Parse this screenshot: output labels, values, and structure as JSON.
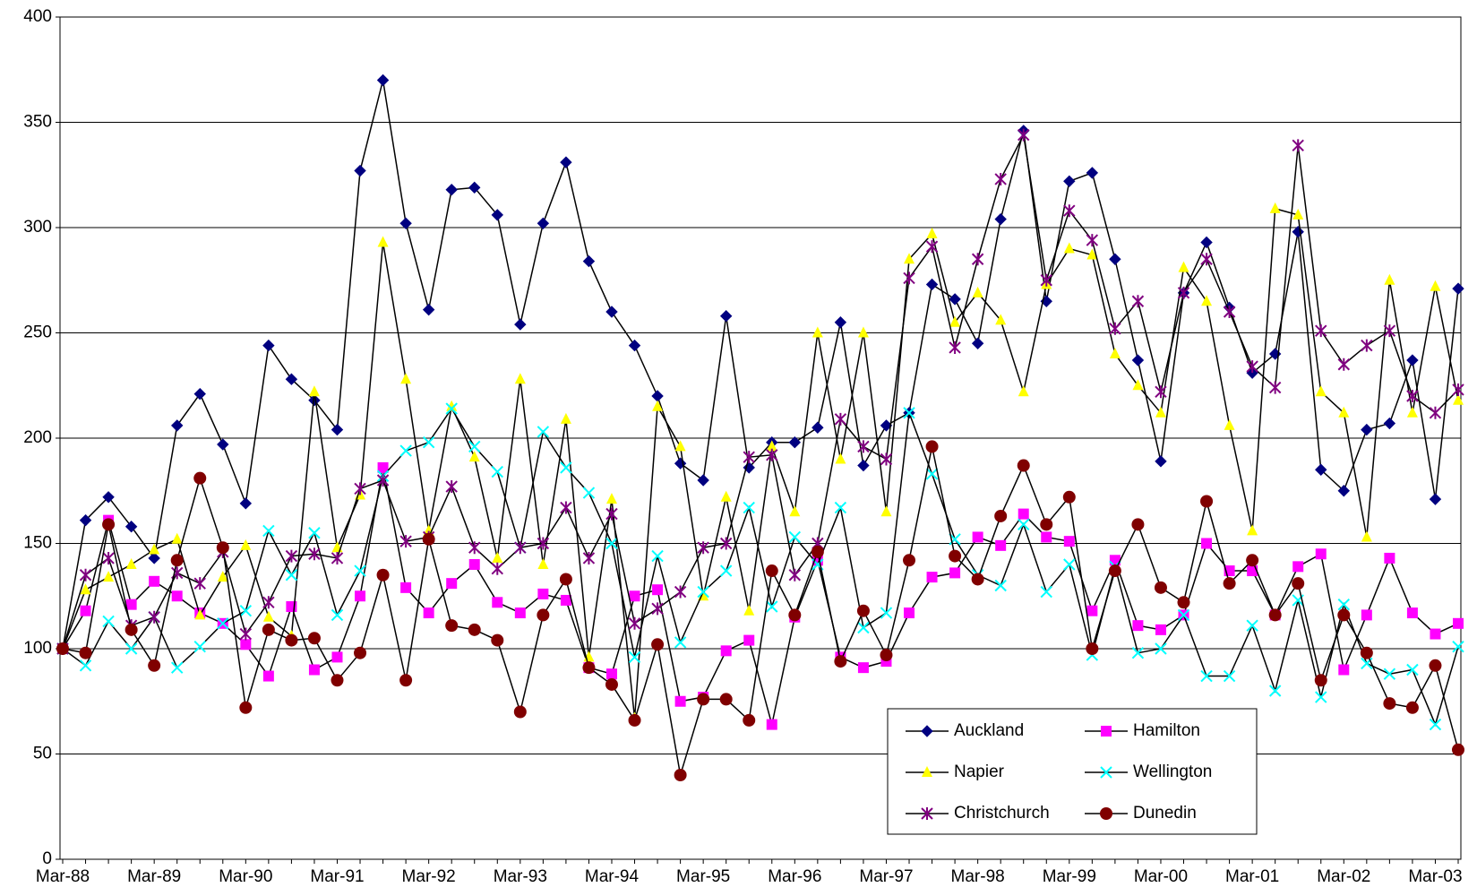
{
  "chart_data": {
    "type": "line",
    "categories": [
      "Mar-88",
      null,
      null,
      null,
      "Mar-89",
      null,
      null,
      null,
      "Mar-90",
      null,
      null,
      null,
      "Mar-91",
      null,
      null,
      null,
      "Mar-92",
      null,
      null,
      null,
      "Mar-93",
      null,
      null,
      null,
      "Mar-94",
      null,
      null,
      null,
      "Mar-95",
      null,
      null,
      null,
      "Mar-96",
      null,
      null,
      null,
      "Mar-97",
      null,
      null,
      null,
      "Mar-98",
      null,
      null,
      null,
      "Mar-99",
      null,
      null,
      null,
      "Mar-00",
      null,
      null,
      null,
      "Mar-01",
      null,
      null,
      null,
      "Mar-02",
      null,
      null,
      null,
      "Mar-03",
      null
    ],
    "ylim": [
      0,
      400
    ],
    "yticks": [
      0,
      50,
      100,
      150,
      200,
      250,
      300,
      350,
      400
    ],
    "grid": true,
    "series": [
      {
        "name": "Auckland",
        "color": "#000080",
        "values": [
          100,
          161,
          172,
          158,
          143,
          206,
          221,
          197,
          169,
          244,
          228,
          218,
          204,
          327,
          370,
          302,
          261,
          318,
          319,
          306,
          254,
          302,
          331,
          284,
          260,
          244,
          220,
          188,
          180,
          258,
          186,
          198,
          198,
          205,
          255,
          187,
          206,
          212,
          273,
          266,
          245,
          304,
          346,
          265,
          322,
          326,
          285,
          237,
          189,
          269,
          293,
          262,
          231,
          240,
          298,
          185,
          175,
          204,
          207,
          237,
          171,
          271
        ]
      },
      {
        "name": "Hamilton",
        "color": "#ff00ff",
        "values": [
          100,
          118,
          161,
          121,
          132,
          125,
          117,
          112,
          102,
          87,
          120,
          90,
          96,
          125,
          186,
          129,
          117,
          131,
          140,
          122,
          117,
          126,
          123,
          91,
          88,
          125,
          128,
          75,
          77,
          99,
          104,
          64,
          115,
          142,
          96,
          91,
          94,
          117,
          134,
          136,
          153,
          149,
          164,
          153,
          151,
          118,
          142,
          111,
          109,
          116,
          150,
          137,
          137,
          116,
          139,
          145,
          90,
          116,
          143,
          117,
          107,
          112
        ]
      },
      {
        "name": "Napier",
        "color": "#ffff00",
        "values": [
          100,
          128,
          134,
          140,
          147,
          152,
          116,
          134,
          149,
          115,
          106,
          222,
          148,
          173,
          293,
          228,
          156,
          215,
          191,
          143,
          228,
          140,
          209,
          96,
          171,
          67,
          215,
          196,
          125,
          172,
          118,
          196,
          165,
          250,
          190,
          250,
          165,
          285,
          297,
          255,
          269,
          256,
          222,
          273,
          290,
          287,
          240,
          225,
          212,
          281,
          265,
          206,
          156,
          309,
          306,
          222,
          212,
          153,
          275,
          212,
          272,
          218
        ]
      },
      {
        "name": "Wellington",
        "color": "#00ffff",
        "values": [
          100,
          92,
          113,
          100,
          115,
          91,
          101,
          112,
          118,
          156,
          135,
          155,
          116,
          137,
          182,
          194,
          198,
          214,
          196,
          184,
          148,
          203,
          186,
          174,
          150,
          96,
          144,
          103,
          127,
          137,
          167,
          120,
          153,
          140,
          167,
          110,
          117,
          212,
          183,
          152,
          135,
          130,
          159,
          127,
          140,
          97,
          139,
          98,
          100,
          116,
          87,
          87,
          111,
          80,
          123,
          77,
          121,
          93,
          88,
          90,
          64,
          101
        ]
      },
      {
        "name": "Christchurch",
        "color": "#800080",
        "values": [
          100,
          135,
          143,
          111,
          115,
          136,
          131,
          146,
          107,
          122,
          144,
          145,
          143,
          176,
          180,
          151,
          153,
          177,
          148,
          138,
          148,
          150,
          167,
          143,
          164,
          112,
          119,
          127,
          148,
          150,
          191,
          192,
          135,
          150,
          209,
          196,
          190,
          276,
          291,
          243,
          285,
          323,
          344,
          275,
          308,
          294,
          252,
          265,
          222,
          269,
          285,
          260,
          234,
          224,
          339,
          251,
          235,
          244,
          251,
          220,
          212,
          223
        ]
      },
      {
        "name": "Dunedin",
        "color": "#800000",
        "values": [
          100,
          98,
          159,
          109,
          92,
          142,
          181,
          148,
          72,
          109,
          104,
          105,
          85,
          98,
          135,
          85,
          152,
          111,
          109,
          104,
          70,
          116,
          133,
          91,
          83,
          66,
          102,
          40,
          76,
          76,
          66,
          137,
          116,
          146,
          94,
          118,
          97,
          142,
          196,
          144,
          133,
          163,
          187,
          159,
          172,
          100,
          137,
          159,
          129,
          122,
          170,
          131,
          142,
          116,
          131,
          85,
          116,
          98,
          74,
          72,
          92,
          52
        ]
      }
    ]
  }
}
